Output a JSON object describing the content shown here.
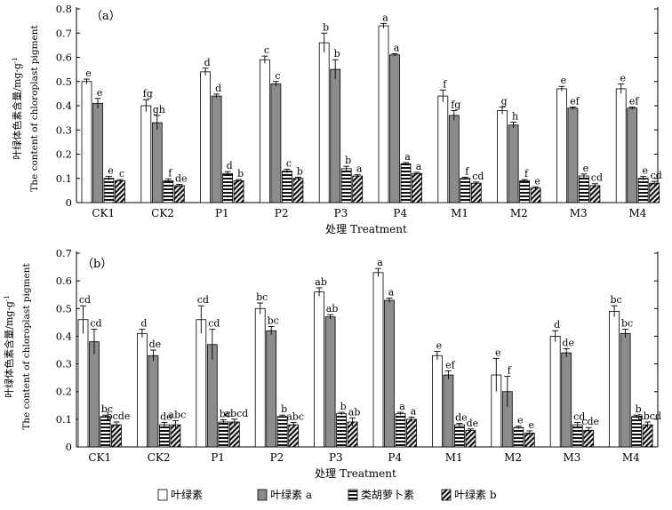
{
  "chart_data": [
    {
      "type": "bar",
      "panel_label": "（a）",
      "xlabel": "处理 Treatment",
      "ylabel_cn": "叶绿体色素含量/mg·g",
      "ylabel_sup": "-1",
      "ylabel_en": "The content of chloroplast pigment",
      "ylim": [
        0,
        0.8
      ],
      "yticks": [
        "0",
        "0.1",
        "0.2",
        "0.3",
        "0.4",
        "0.5",
        "0.6",
        "0.7",
        "0.8"
      ],
      "categories": [
        "CK1",
        "CK2",
        "P1",
        "P2",
        "P3",
        "P4",
        "M1",
        "M2",
        "M3",
        "M4"
      ],
      "series": [
        {
          "name": "叶绿素",
          "values": [
            0.5,
            0.4,
            0.54,
            0.59,
            0.66,
            0.73,
            0.44,
            0.38,
            0.47,
            0.47
          ],
          "errors": [
            0.01,
            0.025,
            0.015,
            0.015,
            0.04,
            0.01,
            0.025,
            0.015,
            0.01,
            0.02
          ],
          "letters": [
            "e",
            "fg",
            "d",
            "c",
            "b",
            "a",
            "f",
            "g",
            "e",
            "e"
          ]
        },
        {
          "name": "叶绿素 a",
          "values": [
            0.41,
            0.33,
            0.44,
            0.49,
            0.55,
            0.61,
            0.36,
            0.32,
            0.39,
            0.39
          ],
          "errors": [
            0.02,
            0.03,
            0.008,
            0.01,
            0.04,
            0.005,
            0.02,
            0.012,
            0.005,
            0.005
          ],
          "letters": [
            "e",
            "gh",
            "d",
            "c",
            "b",
            "a",
            "fg",
            "h",
            "ef",
            "ef"
          ]
        },
        {
          "name": "类胡萝卜素",
          "values": [
            0.1,
            0.09,
            0.12,
            0.13,
            0.14,
            0.16,
            0.1,
            0.09,
            0.11,
            0.1
          ],
          "errors": [
            0.008,
            0.008,
            0.008,
            0.008,
            0.01,
            0.005,
            0.005,
            0.005,
            0.008,
            0.008
          ],
          "letters": [
            "e",
            "f",
            "d",
            "c",
            "b",
            "a",
            "f",
            "f",
            "e",
            "e"
          ]
        },
        {
          "name": "叶绿素 b",
          "values": [
            0.09,
            0.07,
            0.09,
            0.1,
            0.11,
            0.12,
            0.08,
            0.06,
            0.07,
            0.08
          ],
          "errors": [
            0.005,
            0.005,
            0.005,
            0.005,
            0.005,
            0.005,
            0.005,
            0.005,
            0.008,
            0.008
          ],
          "letters": [
            "c",
            "de",
            "b",
            "b",
            "a",
            "a",
            "cd",
            "e",
            "cd",
            "cd"
          ]
        }
      ]
    },
    {
      "type": "bar",
      "panel_label": "（b）",
      "xlabel": "处理 Treatment",
      "ylabel_cn": "叶绿体色素含量/mg·g",
      "ylabel_sup": "-1",
      "ylabel_en": "The content of chloroplast pigment",
      "ylim": [
        0,
        0.7
      ],
      "yticks": [
        "0",
        "0.1",
        "0.2",
        "0.3",
        "0.4",
        "0.5",
        "0.6",
        "0.7"
      ],
      "categories": [
        "CK1",
        "CK2",
        "P1",
        "P2",
        "P3",
        "P4",
        "M1",
        "M2",
        "M3",
        "M4"
      ],
      "series": [
        {
          "name": "叶绿素",
          "values": [
            0.46,
            0.41,
            0.46,
            0.5,
            0.56,
            0.63,
            0.33,
            0.26,
            0.4,
            0.49
          ],
          "errors": [
            0.05,
            0.015,
            0.05,
            0.02,
            0.015,
            0.015,
            0.015,
            0.06,
            0.02,
            0.02
          ],
          "letters": [
            "cd",
            "d",
            "cd",
            "bc",
            "ab",
            "a",
            "e",
            "e",
            "d",
            "bc"
          ]
        },
        {
          "name": "叶绿素 a",
          "values": [
            0.38,
            0.33,
            0.37,
            0.42,
            0.47,
            0.53,
            0.26,
            0.2,
            0.34,
            0.41
          ],
          "errors": [
            0.045,
            0.02,
            0.055,
            0.015,
            0.008,
            0.008,
            0.015,
            0.055,
            0.015,
            0.015
          ],
          "letters": [
            "cd",
            "de",
            "cd",
            "bc",
            "ab",
            "a",
            "ef",
            "f",
            "de",
            "bc"
          ]
        },
        {
          "name": "类胡萝卜素",
          "values": [
            0.11,
            0.08,
            0.09,
            0.11,
            0.12,
            0.12,
            0.08,
            0.07,
            0.08,
            0.11
          ],
          "errors": [
            0.005,
            0.008,
            0.008,
            0.005,
            0.005,
            0.005,
            0.005,
            0.005,
            0.008,
            0.005
          ],
          "letters": [
            "bc",
            "de",
            "bc",
            "b",
            "b",
            "a",
            "de",
            "e",
            "cd",
            "b"
          ]
        },
        {
          "name": "叶绿素 b",
          "values": [
            0.08,
            0.08,
            0.09,
            0.08,
            0.09,
            0.1,
            0.06,
            0.05,
            0.06,
            0.08
          ],
          "errors": [
            0.01,
            0.015,
            0.01,
            0.008,
            0.015,
            0.008,
            0.005,
            0.008,
            0.01,
            0.01
          ],
          "letters": [
            "bcde",
            "abc",
            "abcd",
            "abc",
            "ab",
            "a",
            "de",
            "e",
            "cde",
            "abcd"
          ]
        }
      ]
    }
  ],
  "legend": [
    "叶绿素",
    "叶绿素 a",
    "类胡萝卜素",
    "叶绿素 b"
  ]
}
